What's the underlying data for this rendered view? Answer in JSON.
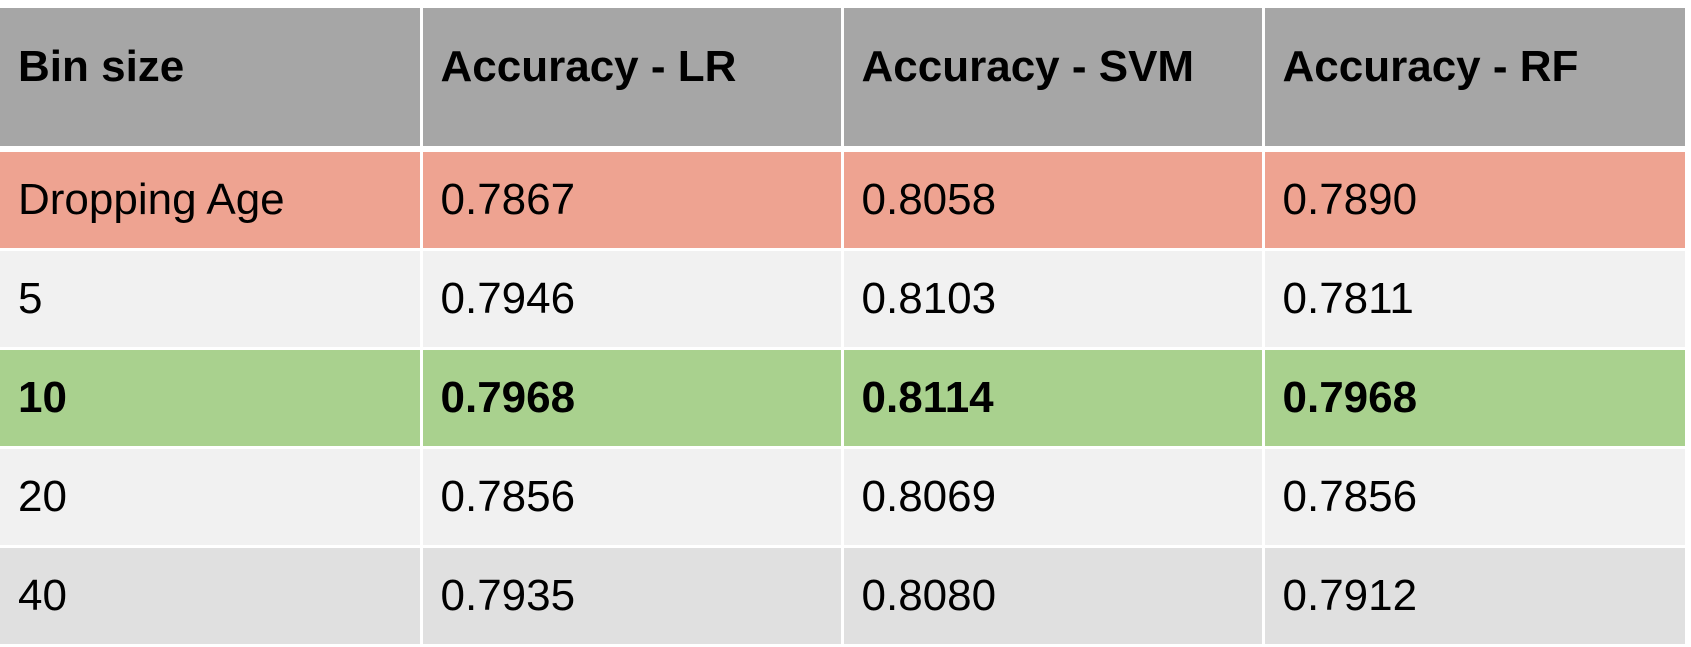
{
  "chart_data": {
    "type": "table",
    "columns": [
      "Bin size",
      "Accuracy - LR",
      "Accuracy - SVM",
      "Accuracy - RF"
    ],
    "rows": [
      {
        "style": "drop",
        "cells": [
          "Dropping Age",
          "0.7867",
          "0.8058",
          "0.7890"
        ]
      },
      {
        "style": "light",
        "cells": [
          "5",
          "0.7946",
          "0.8103",
          "0.7811"
        ]
      },
      {
        "style": "best",
        "cells": [
          "10",
          "0.7968",
          "0.8114",
          "0.7968"
        ]
      },
      {
        "style": "light",
        "cells": [
          "20",
          "0.7856",
          "0.8069",
          "0.7856"
        ]
      },
      {
        "style": "alt",
        "cells": [
          "40",
          "0.7935",
          "0.8080",
          "0.7912"
        ]
      }
    ],
    "colors": {
      "header": "#a6a6a6",
      "drop_row": "#eea391",
      "light_row": "#f1f1f1",
      "best_row": "#a9d18e",
      "alt_row": "#e0e0e0"
    }
  }
}
